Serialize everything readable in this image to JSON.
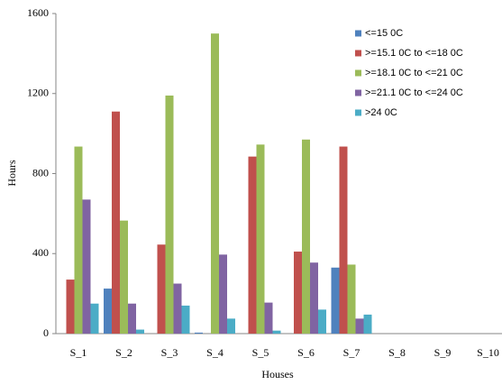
{
  "chart_data": {
    "type": "bar",
    "x_label": "Houses",
    "y_label": "Hours",
    "categories": [
      "S_1",
      "S_2",
      "S_3",
      "S_4",
      "S_5",
      "S_6",
      "S_7",
      "S_8",
      "S_9",
      "S_10"
    ],
    "series": [
      {
        "name": "<=15 0C",
        "color": "#4f81bd",
        "values": [
          0,
          225,
          0,
          5,
          0,
          0,
          330,
          0,
          0,
          0
        ]
      },
      {
        "name": ">=15.1 0C to <=18 0C",
        "color": "#c0504d",
        "values": [
          270,
          1110,
          445,
          0,
          885,
          410,
          935,
          0,
          0,
          0
        ]
      },
      {
        "name": ">=18.1 0C to <=21 0C",
        "color": "#9bbb59",
        "values": [
          935,
          565,
          1190,
          1500,
          945,
          970,
          345,
          0,
          0,
          0
        ]
      },
      {
        "name": ">=21.1 0C to <=24 0C",
        "color": "#8064a2",
        "values": [
          670,
          150,
          250,
          395,
          155,
          355,
          75,
          0,
          0,
          0
        ]
      },
      {
        "name": ">24 0C",
        "color": "#4bacc6",
        "values": [
          150,
          20,
          140,
          75,
          15,
          120,
          95,
          0,
          0,
          0
        ]
      }
    ],
    "ylim": [
      0,
      1600
    ],
    "yticks": [
      0,
      400,
      800,
      1200,
      1600
    ],
    "grid": false,
    "legend": "top-right"
  }
}
